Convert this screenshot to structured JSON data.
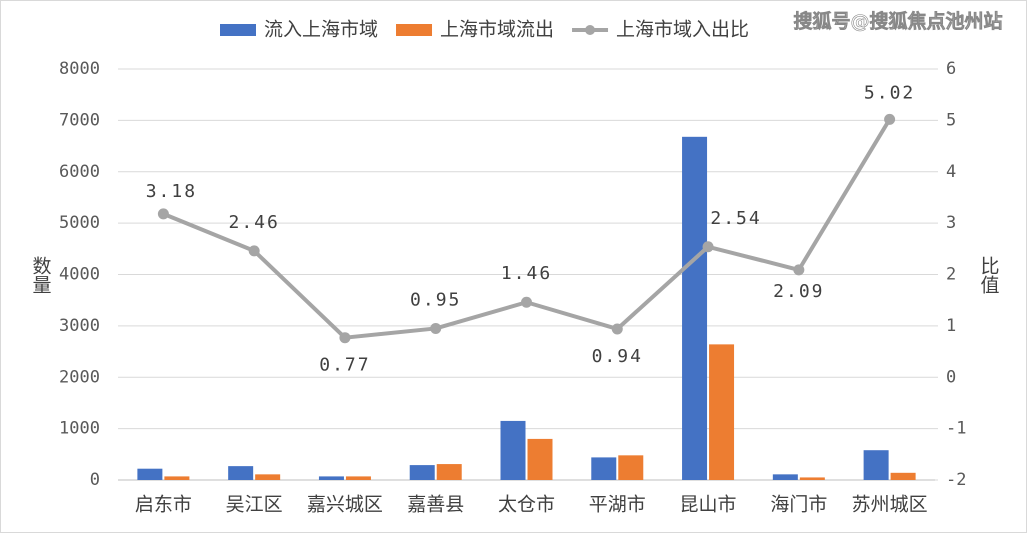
{
  "chart_data": {
    "type": "bar_line",
    "watermark": "搜狐号@搜狐焦点池州站",
    "y_label": "数量",
    "y2_label": "比值",
    "categories": [
      "启东市",
      "吴江区",
      "嘉兴城区",
      "嘉善县",
      "太仓市",
      "平湖市",
      "昆山市",
      "海门市",
      "苏州城区"
    ],
    "series": [
      {
        "name": "流入上海市域",
        "color": "#4472c4",
        "type": "bar",
        "values": [
          220,
          270,
          70,
          290,
          1150,
          440,
          6680,
          110,
          580
        ]
      },
      {
        "name": "上海市域流出",
        "color": "#ed7d31",
        "type": "bar",
        "values": [
          70,
          110,
          70,
          310,
          800,
          480,
          2640,
          50,
          140
        ]
      },
      {
        "name": "上海市域入出比",
        "color": "#a5a5a5",
        "type": "line",
        "axis": "y2",
        "values": [
          3.18,
          2.46,
          0.77,
          0.95,
          1.46,
          0.94,
          2.54,
          2.09,
          5.02
        ]
      }
    ],
    "ylim": [
      0,
      8000
    ],
    "yticks": [
      0,
      1000,
      2000,
      3000,
      4000,
      5000,
      6000,
      7000,
      8000
    ],
    "y2lim": [
      -2,
      6
    ],
    "y2ticks": [
      -2,
      -1,
      0,
      1,
      2,
      3,
      4,
      5,
      6
    ],
    "grid": true,
    "legend": "top"
  }
}
